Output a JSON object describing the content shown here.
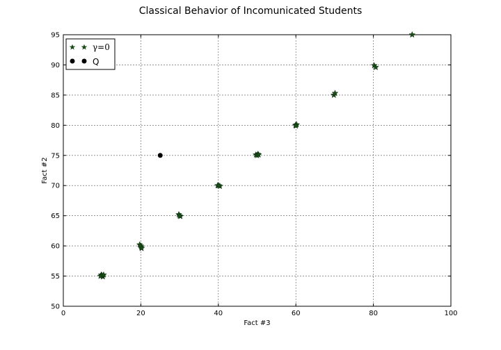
{
  "chart_data": {
    "type": "scatter",
    "title": "Classical Behavior of Incomunicated Students",
    "xlabel": "Fact #3",
    "ylabel": "Fact #2",
    "xlim": [
      0,
      100
    ],
    "ylim": [
      50,
      95
    ],
    "xticks": [
      "0",
      "20",
      "40",
      "60",
      "80",
      "100"
    ],
    "yticks": [
      "50",
      "55",
      "60",
      "65",
      "70",
      "75",
      "80",
      "85",
      "90",
      "95"
    ],
    "grid": true,
    "legend_placement": "top-left",
    "series": [
      {
        "name": "γ=0",
        "marker": "star",
        "color": "#1a4d1a",
        "points": [
          [
            9.8,
            55.2
          ],
          [
            10.2,
            54.9
          ],
          [
            10.0,
            55.1
          ],
          [
            9.6,
            55.0
          ],
          [
            10.4,
            55.2
          ],
          [
            19.7,
            60.2
          ],
          [
            20.1,
            59.8
          ],
          [
            20.0,
            60.0
          ],
          [
            20.2,
            59.6
          ],
          [
            29.8,
            65.2
          ],
          [
            30.2,
            64.9
          ],
          [
            30.0,
            65.0
          ],
          [
            39.8,
            70.0
          ],
          [
            40.4,
            69.9
          ],
          [
            40.1,
            70.0
          ],
          [
            49.7,
            75.1
          ],
          [
            50.2,
            75.2
          ],
          [
            50.0,
            75.0
          ],
          [
            50.4,
            75.1
          ],
          [
            59.9,
            80.0
          ],
          [
            60.2,
            80.1
          ],
          [
            60.0,
            79.9
          ],
          [
            69.8,
            85.0
          ],
          [
            70.1,
            85.3
          ],
          [
            80.2,
            89.9
          ],
          [
            80.6,
            89.6
          ],
          [
            90.0,
            95.0
          ]
        ]
      },
      {
        "name": "Q",
        "marker": "circle",
        "color": "#000000",
        "points": [
          [
            25,
            75
          ]
        ]
      }
    ]
  }
}
